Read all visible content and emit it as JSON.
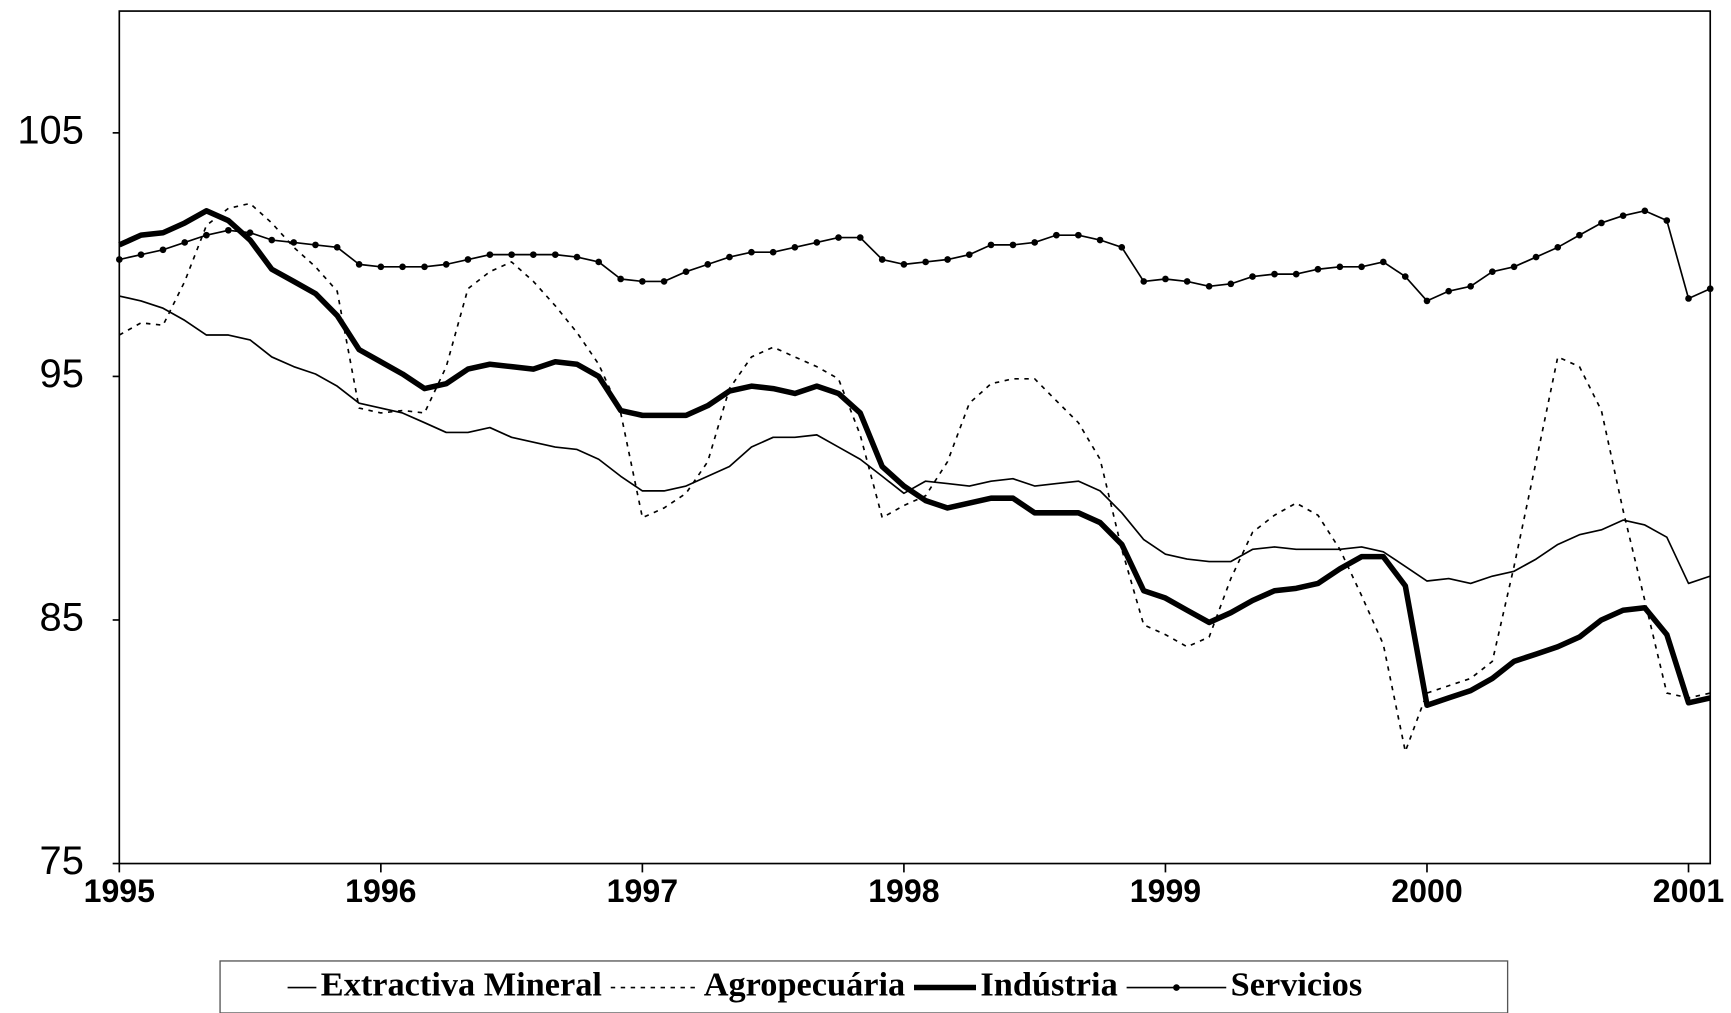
{
  "chart_data": {
    "type": "line",
    "x": [
      1995,
      1995.083,
      1995.167,
      1995.25,
      1995.333,
      1995.417,
      1995.5,
      1995.583,
      1995.667,
      1995.75,
      1995.833,
      1995.917,
      1996,
      1996.083,
      1996.167,
      1996.25,
      1996.333,
      1996.417,
      1996.5,
      1996.583,
      1996.667,
      1996.75,
      1996.833,
      1996.917,
      1997,
      1997.083,
      1997.167,
      1997.25,
      1997.333,
      1997.417,
      1997.5,
      1997.583,
      1997.667,
      1997.75,
      1997.833,
      1997.917,
      1998,
      1998.083,
      1998.167,
      1998.25,
      1998.333,
      1998.417,
      1998.5,
      1998.583,
      1998.667,
      1998.75,
      1998.833,
      1998.917,
      1999,
      1999.083,
      1999.167,
      1999.25,
      1999.333,
      1999.417,
      1999.5,
      1999.583,
      1999.667,
      1999.75,
      1999.833,
      1999.917,
      2000,
      2000.083,
      2000.167,
      2000.25,
      2000.333,
      2000.417,
      2000.5,
      2000.583,
      2000.667,
      2000.75,
      2000.833,
      2000.917,
      2001,
      2001.083
    ],
    "series": [
      {
        "name": "Extractiva Mineral",
        "color": "#000000",
        "line_width": 1.5,
        "line_style": "solid",
        "marker": false,
        "values": [
          98.3,
          98.1,
          97.8,
          97.3,
          96.7,
          96.7,
          96.5,
          95.8,
          95.4,
          95.1,
          94.6,
          93.9,
          93.7,
          93.5,
          93.1,
          92.7,
          92.7,
          92.9,
          92.5,
          92.3,
          92.1,
          92.0,
          91.6,
          90.9,
          90.3,
          90.3,
          90.5,
          90.9,
          91.3,
          92.1,
          92.5,
          92.5,
          92.6,
          92.1,
          91.6,
          90.9,
          90.2,
          90.7,
          90.6,
          90.5,
          90.7,
          90.8,
          90.5,
          90.6,
          90.7,
          90.3,
          89.4,
          88.3,
          87.7,
          87.5,
          87.4,
          87.4,
          87.9,
          88.0,
          87.9,
          87.9,
          87.9,
          88.0,
          87.8,
          87.2,
          86.6,
          86.7,
          86.5,
          86.8,
          87.0,
          87.5,
          88.1,
          88.5,
          88.7,
          89.1,
          88.9,
          88.4,
          86.5,
          86.8
        ]
      },
      {
        "name": "Agropecuária",
        "color": "#000000",
        "line_width": 1.5,
        "line_style": "dotted",
        "marker": false,
        "values": [
          96.7,
          97.2,
          97.1,
          98.9,
          101.2,
          101.9,
          102.1,
          101.3,
          100.3,
          99.5,
          98.5,
          93.7,
          93.5,
          93.6,
          93.5,
          95.4,
          98.6,
          99.3,
          99.7,
          98.9,
          97.9,
          96.8,
          95.5,
          93.5,
          89.2,
          89.6,
          90.2,
          91.5,
          94.5,
          95.8,
          96.2,
          95.8,
          95.4,
          94.9,
          92.6,
          89.2,
          89.7,
          90.1,
          91.5,
          93.9,
          94.7,
          94.9,
          94.9,
          94.0,
          93.1,
          91.6,
          87.9,
          84.8,
          84.4,
          83.9,
          84.3,
          86.7,
          88.6,
          89.3,
          89.8,
          89.3,
          87.9,
          86.0,
          84.0,
          79.6,
          82.0,
          82.3,
          82.6,
          83.3,
          87.2,
          91.5,
          95.8,
          95.4,
          93.6,
          89.5,
          85.8,
          82.0,
          81.8,
          82.0
        ]
      },
      {
        "name": "Indústria",
        "color": "#000000",
        "line_width": 5,
        "line_style": "solid",
        "marker": false,
        "values": [
          100.4,
          100.8,
          100.9,
          101.3,
          101.8,
          101.4,
          100.6,
          99.4,
          98.9,
          98.4,
          97.5,
          96.1,
          95.6,
          95.1,
          94.5,
          94.7,
          95.3,
          95.5,
          95.4,
          95.3,
          95.6,
          95.5,
          95.0,
          93.6,
          93.4,
          93.4,
          93.4,
          93.8,
          94.4,
          94.6,
          94.5,
          94.3,
          94.6,
          94.3,
          93.5,
          91.3,
          90.5,
          89.9,
          89.6,
          89.8,
          90.0,
          90.0,
          89.4,
          89.4,
          89.4,
          89.0,
          88.1,
          86.2,
          85.9,
          85.4,
          84.9,
          85.3,
          85.8,
          86.2,
          86.3,
          86.5,
          87.1,
          87.6,
          87.6,
          86.4,
          81.5,
          81.8,
          82.1,
          82.6,
          83.3,
          83.6,
          83.9,
          84.3,
          85.0,
          85.4,
          85.5,
          84.4,
          81.6,
          81.8
        ]
      },
      {
        "name": "Servicios",
        "color": "#000000",
        "line_width": 1.5,
        "line_style": "solid",
        "marker": true,
        "values": [
          99.8,
          100.0,
          100.2,
          100.5,
          100.8,
          101.0,
          100.9,
          100.6,
          100.5,
          100.4,
          100.3,
          99.6,
          99.5,
          99.5,
          99.5,
          99.6,
          99.8,
          100.0,
          100.0,
          100.0,
          100.0,
          99.9,
          99.7,
          99.0,
          98.9,
          98.9,
          99.3,
          99.6,
          99.9,
          100.1,
          100.1,
          100.3,
          100.5,
          100.7,
          100.7,
          99.8,
          99.6,
          99.7,
          99.8,
          100.0,
          100.4,
          100.4,
          100.5,
          100.8,
          100.8,
          100.6,
          100.3,
          98.9,
          99.0,
          98.9,
          98.7,
          98.8,
          99.1,
          99.2,
          99.2,
          99.4,
          99.5,
          99.5,
          99.7,
          99.1,
          98.1,
          98.5,
          98.7,
          99.3,
          99.5,
          99.9,
          100.3,
          100.8,
          101.3,
          101.6,
          101.8,
          101.4,
          98.2,
          98.6
        ]
      }
    ],
    "xlim": [
      1995,
      2001.083
    ],
    "xticks": [
      1995,
      1996,
      1997,
      1998,
      1999,
      2000,
      2001
    ],
    "ylim": [
      75,
      110
    ],
    "yticks": [
      75,
      85,
      95,
      105
    ],
    "grid": false,
    "legend": "bottom"
  }
}
